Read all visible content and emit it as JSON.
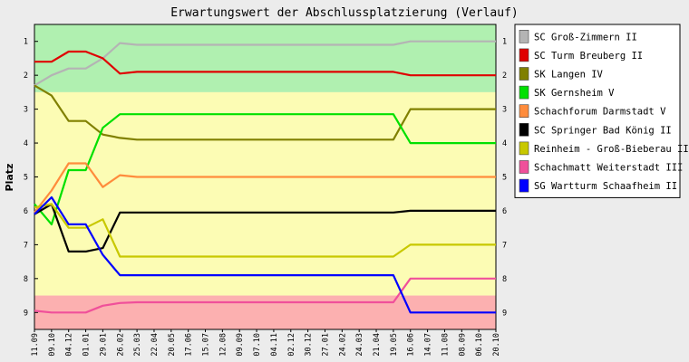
{
  "chart_data": {
    "type": "line",
    "title": "Erwartungswert der Abschlussplatzierung (Verlauf)",
    "xlabel": "",
    "ylabel": "Platz",
    "ylim": [
      0.5,
      9.5
    ],
    "y_inverted": true,
    "y_ticks": [
      "1",
      "2",
      "3",
      "4",
      "5",
      "6",
      "7",
      "8",
      "9"
    ],
    "grid": false,
    "legend_position": "right",
    "bands": [
      {
        "from": 0.5,
        "to": 2.5,
        "color": "#b0f0b0"
      },
      {
        "from": 2.5,
        "to": 8.5,
        "color": "#fcfcb4"
      },
      {
        "from": 8.5,
        "to": 9.5,
        "color": "#fcb0b0"
      }
    ],
    "x": [
      "11.09",
      "09.10",
      "04.12",
      "01.01",
      "29.01",
      "26.02",
      "25.03",
      "22.04",
      "20.05",
      "17.06",
      "15.07",
      "12.08",
      "09.09",
      "07.10",
      "04.11",
      "02.12",
      "30.12",
      "27.01",
      "24.02",
      "24.03",
      "21.04",
      "19.05",
      "16.06",
      "14.07",
      "11.08",
      "08.09",
      "06.10",
      "20.10"
    ],
    "series": [
      {
        "name": "SC Groß-Zimmern II",
        "color": "#b4b4b4",
        "values": [
          2.3,
          2.0,
          1.8,
          1.8,
          1.5,
          1.05,
          1.1,
          1.1,
          1.1,
          1.1,
          1.1,
          1.1,
          1.1,
          1.1,
          1.1,
          1.1,
          1.1,
          1.1,
          1.1,
          1.1,
          1.1,
          1.1,
          1.0,
          1.0,
          1.0,
          1.0,
          1.0,
          1.0
        ]
      },
      {
        "name": "SC Turm Breuberg II",
        "color": "#e00000",
        "values": [
          1.6,
          1.6,
          1.3,
          1.3,
          1.5,
          1.95,
          1.9,
          1.9,
          1.9,
          1.9,
          1.9,
          1.9,
          1.9,
          1.9,
          1.9,
          1.9,
          1.9,
          1.9,
          1.9,
          1.9,
          1.9,
          1.9,
          2.0,
          2.0,
          2.0,
          2.0,
          2.0,
          2.0
        ]
      },
      {
        "name": "SK Langen IV",
        "color": "#808000",
        "values": [
          2.3,
          2.6,
          3.35,
          3.35,
          3.75,
          3.85,
          3.9,
          3.9,
          3.9,
          3.9,
          3.9,
          3.9,
          3.9,
          3.9,
          3.9,
          3.9,
          3.9,
          3.9,
          3.9,
          3.9,
          3.9,
          3.9,
          3.0,
          3.0,
          3.0,
          3.0,
          3.0,
          3.0
        ]
      },
      {
        "name": "SK Gernsheim V",
        "color": "#00e000",
        "values": [
          5.8,
          6.4,
          4.8,
          4.8,
          3.55,
          3.15,
          3.15,
          3.15,
          3.15,
          3.15,
          3.15,
          3.15,
          3.15,
          3.15,
          3.15,
          3.15,
          3.15,
          3.15,
          3.15,
          3.15,
          3.15,
          3.15,
          4.0,
          4.0,
          4.0,
          4.0,
          4.0,
          4.0
        ]
      },
      {
        "name": "Schachforum Darmstadt V",
        "color": "#ff8c3c",
        "values": [
          6.05,
          5.4,
          4.6,
          4.6,
          5.3,
          4.95,
          5.0,
          5.0,
          5.0,
          5.0,
          5.0,
          5.0,
          5.0,
          5.0,
          5.0,
          5.0,
          5.0,
          5.0,
          5.0,
          5.0,
          5.0,
          5.0,
          5.0,
          5.0,
          5.0,
          5.0,
          5.0,
          5.0
        ]
      },
      {
        "name": "SC Springer Bad König II",
        "color": "#000000",
        "values": [
          6.1,
          5.8,
          7.2,
          7.2,
          7.1,
          6.05,
          6.05,
          6.05,
          6.05,
          6.05,
          6.05,
          6.05,
          6.05,
          6.05,
          6.05,
          6.05,
          6.05,
          6.05,
          6.05,
          6.05,
          6.05,
          6.05,
          6.0,
          6.0,
          6.0,
          6.0,
          6.0,
          6.0
        ]
      },
      {
        "name": "Reinheim - Groß-Bieberau II",
        "color": "#c8c800",
        "values": [
          5.9,
          5.8,
          6.5,
          6.5,
          6.25,
          7.35,
          7.35,
          7.35,
          7.35,
          7.35,
          7.35,
          7.35,
          7.35,
          7.35,
          7.35,
          7.35,
          7.35,
          7.35,
          7.35,
          7.35,
          7.35,
          7.35,
          7.0,
          7.0,
          7.0,
          7.0,
          7.0,
          7.0
        ]
      },
      {
        "name": "Schachmatt Weiterstadt III",
        "color": "#f0509a",
        "values": [
          8.95,
          9.0,
          9.0,
          9.0,
          8.8,
          8.72,
          8.7,
          8.7,
          8.7,
          8.7,
          8.7,
          8.7,
          8.7,
          8.7,
          8.7,
          8.7,
          8.7,
          8.7,
          8.7,
          8.7,
          8.7,
          8.7,
          8.0,
          8.0,
          8.0,
          8.0,
          8.0,
          8.0
        ]
      },
      {
        "name": "SG Wartturm Schaafheim II",
        "color": "#0000ff",
        "values": [
          6.1,
          5.6,
          6.4,
          6.4,
          7.3,
          7.9,
          7.9,
          7.9,
          7.9,
          7.9,
          7.9,
          7.9,
          7.9,
          7.9,
          7.9,
          7.9,
          7.9,
          7.9,
          7.9,
          7.9,
          7.9,
          7.9,
          9.0,
          9.0,
          9.0,
          9.0,
          9.0,
          9.0
        ]
      }
    ]
  }
}
